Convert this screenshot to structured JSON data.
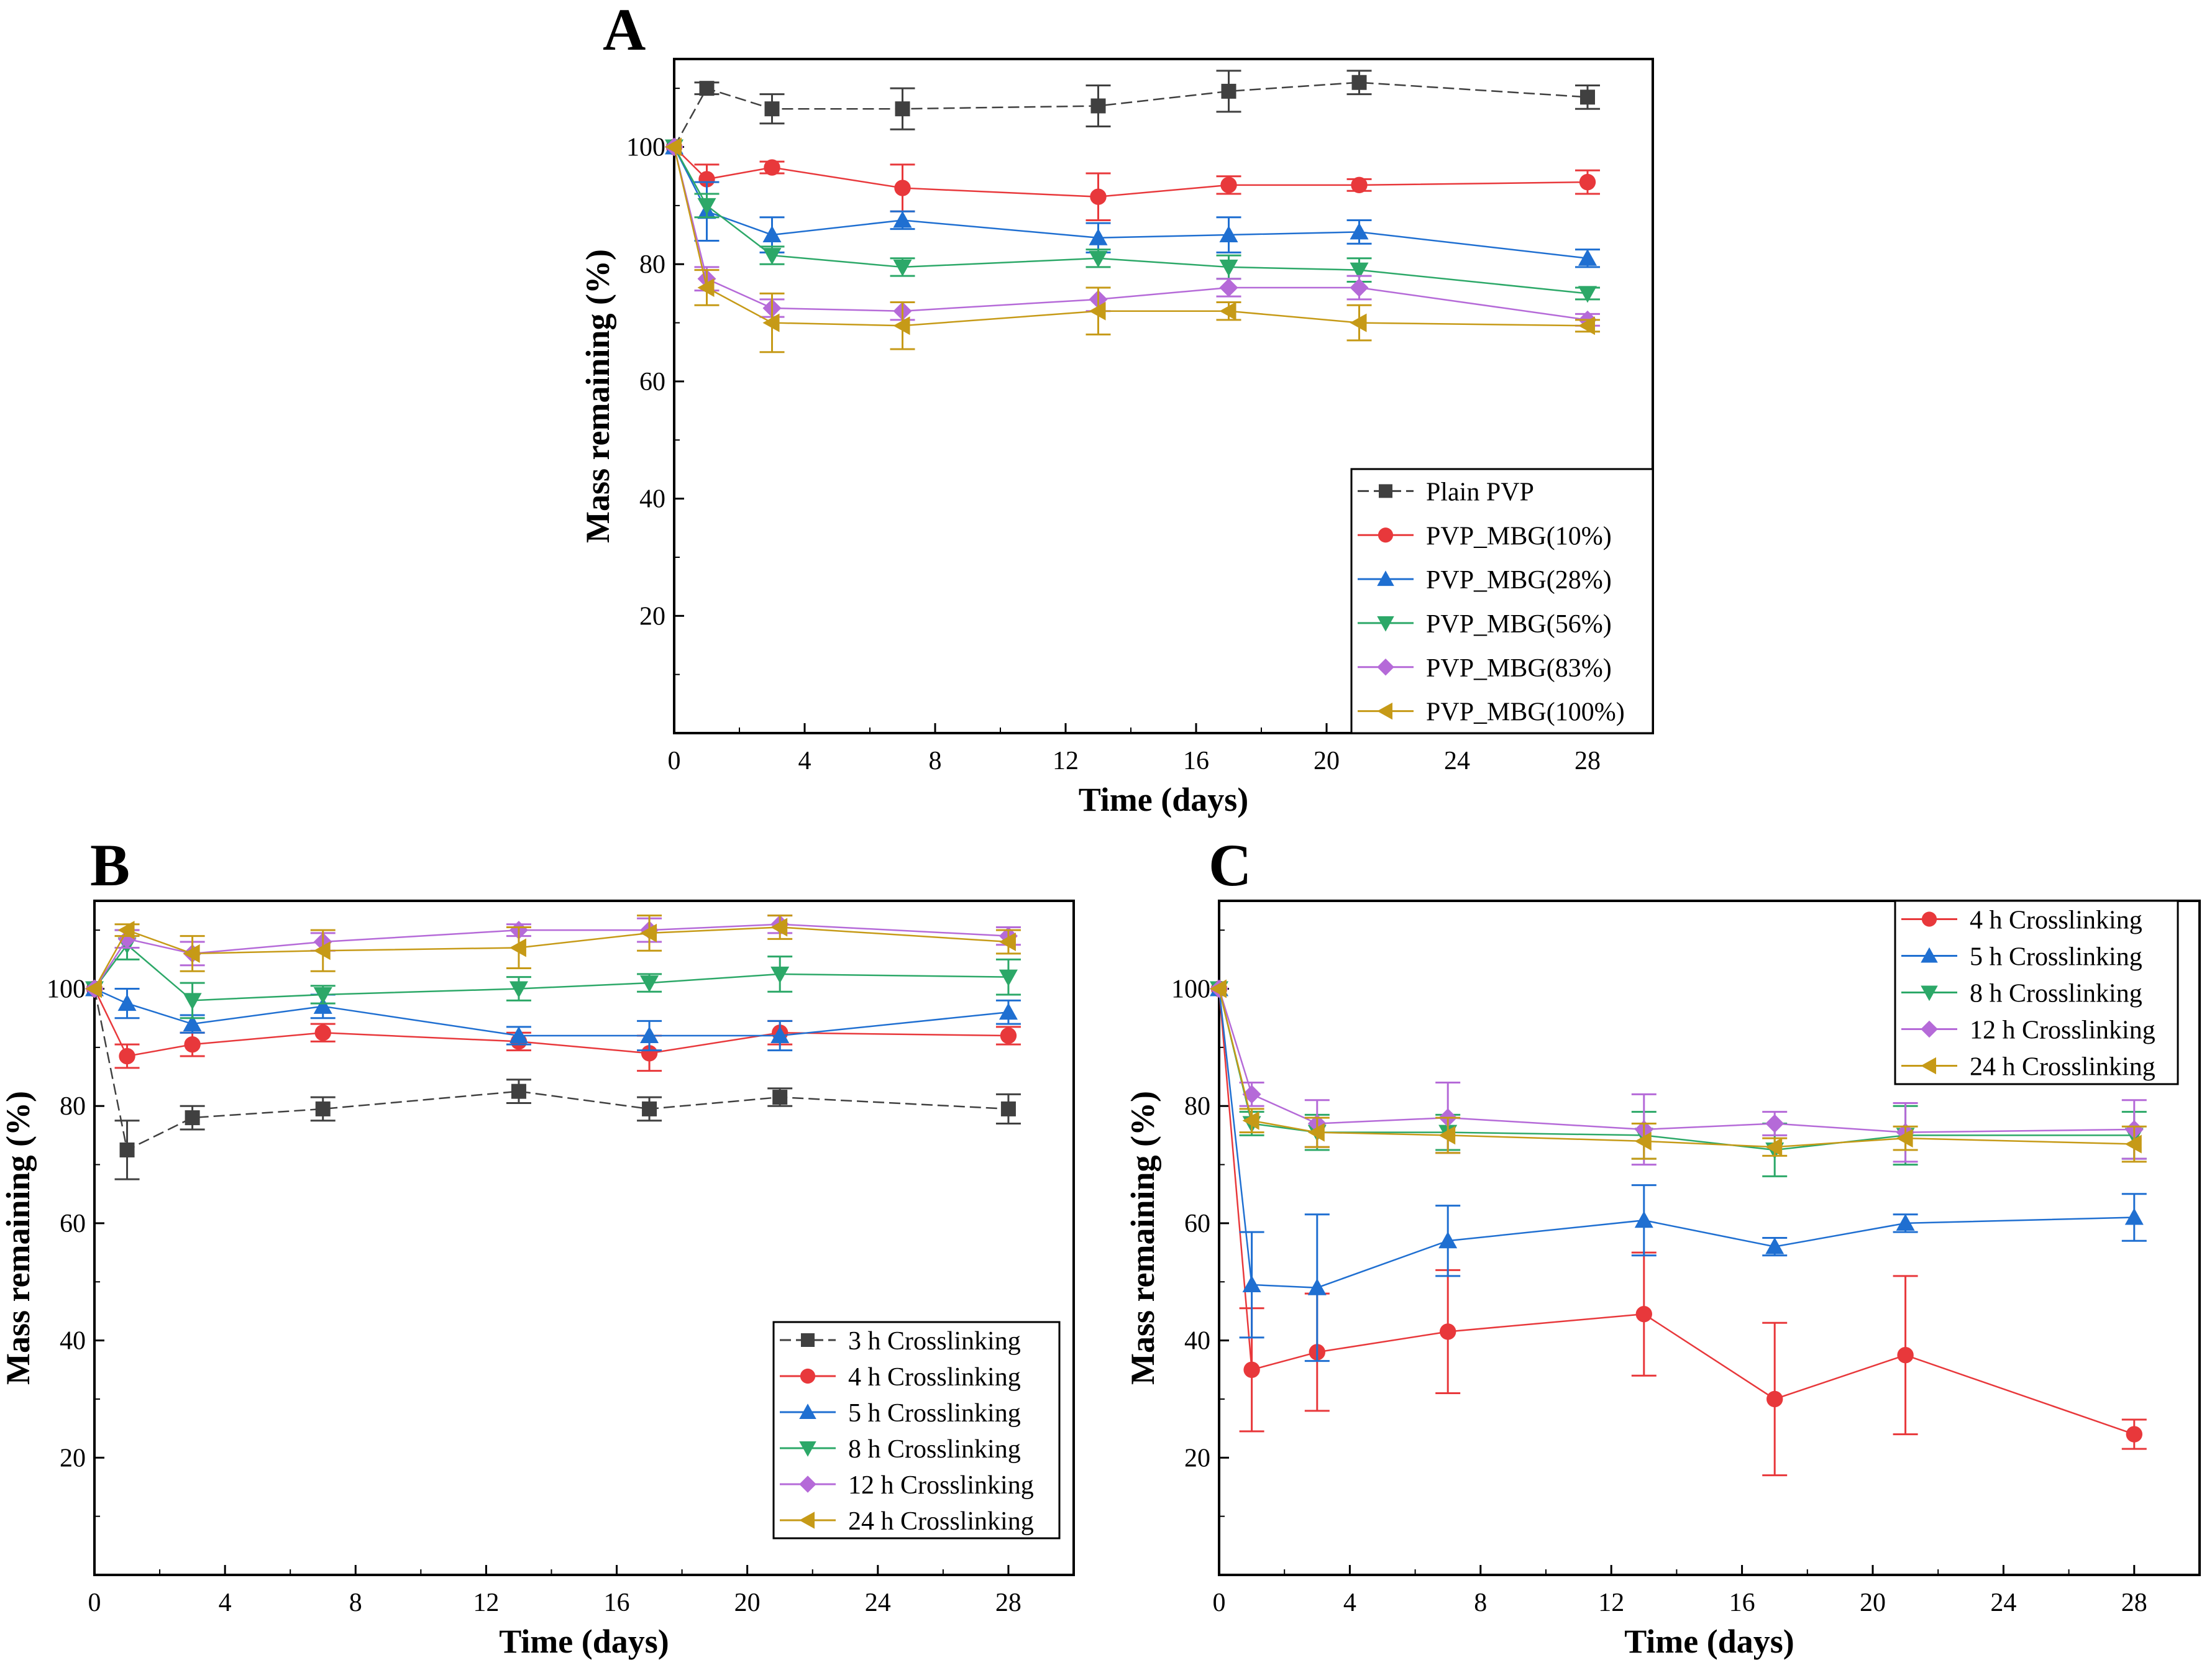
{
  "chart_data": [
    {
      "panel": "A",
      "type": "line",
      "xlabel": "Time (days)",
      "ylabel": "Mass remaining (%)",
      "xlim": [
        0,
        30
      ],
      "ylim": [
        0,
        115
      ],
      "xticks": [
        0,
        4,
        8,
        12,
        16,
        20,
        24,
        28
      ],
      "yticks": [
        20,
        40,
        60,
        80,
        100
      ],
      "legend_position": "bottom-right",
      "x": [
        0,
        1,
        3,
        7,
        13,
        17,
        21,
        28
      ],
      "series": [
        {
          "name": "Plain PVP",
          "color": "#404040",
          "marker": "square",
          "dash": true,
          "values": [
            100,
            110,
            106.5,
            106.5,
            107,
            109.5,
            111,
            108.5
          ],
          "errors": [
            0,
            1,
            2.5,
            3.5,
            3.5,
            3.5,
            2,
            2
          ]
        },
        {
          "name": "PVP_MBG(10%)",
          "color": "#e8383b",
          "marker": "circle",
          "dash": false,
          "values": [
            100,
            94.5,
            96.5,
            93,
            91.5,
            93.5,
            93.5,
            94
          ],
          "errors": [
            0,
            2.5,
            1,
            4,
            4,
            1.5,
            1,
            2
          ]
        },
        {
          "name": "PVP_MBG(28%)",
          "color": "#1f6fd1",
          "marker": "triangle-up",
          "dash": false,
          "values": [
            100,
            89,
            85,
            87.5,
            84.5,
            85,
            85.5,
            81
          ],
          "errors": [
            0,
            5,
            3,
            1.5,
            2.5,
            3,
            2,
            1.5
          ]
        },
        {
          "name": "PVP_MBG(56%)",
          "color": "#2ca868",
          "marker": "triangle-down",
          "dash": false,
          "values": [
            100,
            90,
            81.5,
            79.5,
            81,
            79.5,
            79,
            75
          ],
          "errors": [
            0,
            2,
            1.5,
            1.5,
            1.5,
            2,
            2,
            1
          ]
        },
        {
          "name": "PVP_MBG(83%)",
          "color": "#b56ad8",
          "marker": "diamond",
          "dash": false,
          "values": [
            100,
            77.5,
            72.5,
            72,
            74,
            76,
            76,
            70.5
          ],
          "errors": [
            0,
            2,
            1.5,
            1.5,
            2,
            1.5,
            2,
            1
          ]
        },
        {
          "name": "PVP_MBG(100%)",
          "color": "#c69a17",
          "marker": "triangle-left",
          "dash": false,
          "values": [
            100,
            76,
            70,
            69.5,
            72,
            72,
            70,
            69.5
          ],
          "errors": [
            0,
            3,
            5,
            4,
            4,
            1.5,
            3,
            1
          ]
        }
      ]
    },
    {
      "panel": "B",
      "type": "line",
      "xlabel": "Time (days)",
      "ylabel": "Mass remaining (%)",
      "xlim": [
        0,
        30
      ],
      "ylim": [
        0,
        115
      ],
      "xticks": [
        0,
        4,
        8,
        12,
        16,
        20,
        24,
        28
      ],
      "yticks": [
        20,
        40,
        60,
        80,
        100
      ],
      "legend_position": "bottom-right",
      "x": [
        0,
        1,
        3,
        7,
        13,
        17,
        21,
        28
      ],
      "series": [
        {
          "name": "3 h Crosslinking",
          "color": "#404040",
          "marker": "square",
          "dash": true,
          "values": [
            100,
            72.5,
            78,
            79.5,
            82.5,
            79.5,
            81.5,
            79.5
          ],
          "errors": [
            0,
            5,
            2,
            2,
            2,
            2,
            1.5,
            2.5
          ]
        },
        {
          "name": "4 h Crosslinking",
          "color": "#e8383b",
          "marker": "circle",
          "dash": false,
          "values": [
            100,
            88.5,
            90.5,
            92.5,
            91,
            89,
            92.5,
            92
          ],
          "errors": [
            0,
            2,
            2,
            1.5,
            1.5,
            3,
            2,
            1.5
          ]
        },
        {
          "name": "5 h Crosslinking",
          "color": "#1f6fd1",
          "marker": "triangle-up",
          "dash": false,
          "values": [
            100,
            97.5,
            94,
            97,
            92,
            92,
            92,
            96
          ],
          "errors": [
            0,
            2.5,
            1.5,
            2,
            1.5,
            2.5,
            2.5,
            2
          ]
        },
        {
          "name": "8 h Crosslinking",
          "color": "#2ca868",
          "marker": "triangle-down",
          "dash": false,
          "values": [
            100,
            107.5,
            98,
            99,
            100,
            101,
            102.5,
            102
          ],
          "errors": [
            0,
            2.5,
            3,
            1.5,
            2,
            1.5,
            3,
            3
          ]
        },
        {
          "name": "12 h Crosslinking",
          "color": "#b56ad8",
          "marker": "diamond",
          "dash": false,
          "values": [
            100,
            108.5,
            106,
            108,
            110,
            110,
            111,
            109
          ],
          "errors": [
            0,
            1.5,
            2,
            1.5,
            1,
            2,
            1.5,
            1.5
          ]
        },
        {
          "name": "24 h Crosslinking",
          "color": "#c69a17",
          "marker": "triangle-left",
          "dash": false,
          "values": [
            100,
            110,
            106,
            106.5,
            107,
            109.5,
            110.5,
            108
          ],
          "errors": [
            0,
            1,
            3,
            3.5,
            3.5,
            3,
            2,
            2
          ]
        }
      ]
    },
    {
      "panel": "C",
      "type": "line",
      "xlabel": "Time (days)",
      "ylabel": "Mass remaining (%)",
      "xlim": [
        0,
        30
      ],
      "ylim": [
        0,
        115
      ],
      "xticks": [
        0,
        4,
        8,
        12,
        16,
        20,
        24,
        28
      ],
      "yticks": [
        20,
        40,
        60,
        80,
        100
      ],
      "legend_position": "top-right",
      "x": [
        0,
        1,
        3,
        7,
        13,
        17,
        21,
        28
      ],
      "series": [
        {
          "name": "4 h Crosslinking",
          "color": "#e8383b",
          "marker": "circle",
          "dash": false,
          "values": [
            100,
            35,
            38,
            41.5,
            44.5,
            30,
            37.5,
            24
          ],
          "errors": [
            0,
            10.5,
            10,
            10.5,
            10.5,
            13,
            13.5,
            2.5
          ]
        },
        {
          "name": "5 h Crosslinking",
          "color": "#1f6fd1",
          "marker": "triangle-up",
          "dash": false,
          "values": [
            100,
            49.5,
            49,
            57,
            60.5,
            56,
            60,
            61
          ],
          "errors": [
            0,
            9,
            12.5,
            6,
            6,
            1.5,
            1.5,
            4
          ]
        },
        {
          "name": "8 h Crosslinking",
          "color": "#2ca868",
          "marker": "triangle-down",
          "dash": false,
          "values": [
            100,
            77,
            75.5,
            75.5,
            75,
            72.5,
            75,
            75
          ],
          "errors": [
            0,
            2,
            3,
            3,
            4,
            4.5,
            5,
            4
          ]
        },
        {
          "name": "12 h Crosslinking",
          "color": "#b56ad8",
          "marker": "diamond",
          "dash": false,
          "values": [
            100,
            82,
            77,
            78,
            76,
            77,
            75.5,
            76
          ],
          "errors": [
            0,
            2,
            4,
            6,
            6,
            2,
            5,
            5
          ]
        },
        {
          "name": "24 h Crosslinking",
          "color": "#c69a17",
          "marker": "triangle-left",
          "dash": false,
          "values": [
            100,
            77.5,
            75.5,
            75,
            74,
            73,
            74.5,
            73.5
          ],
          "errors": [
            0,
            2,
            2.5,
            3,
            3,
            1.5,
            2,
            3
          ]
        }
      ]
    }
  ]
}
